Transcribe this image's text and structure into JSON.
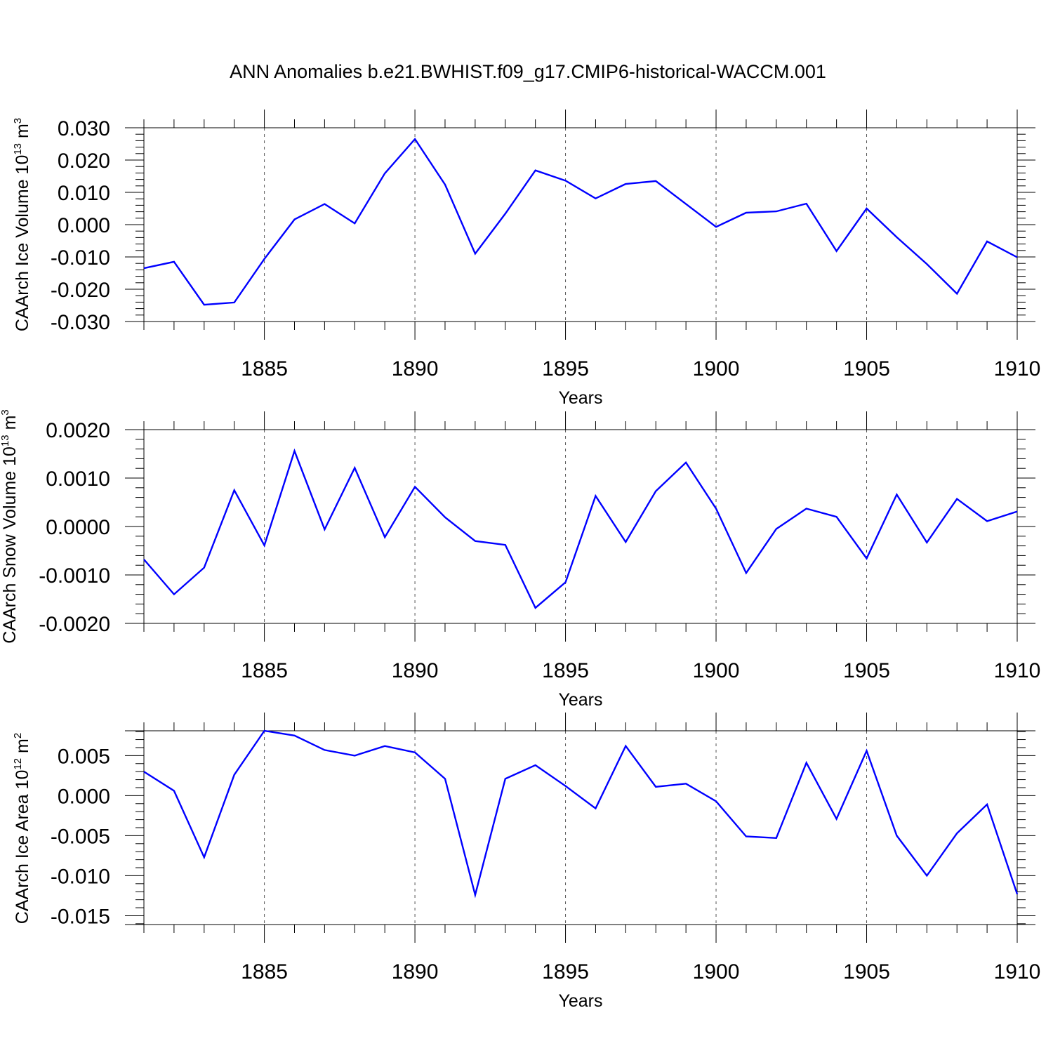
{
  "title": "ANN Anomalies b.e21.BWHIST.f09_g17.CMIP6-historical-WACCM.001",
  "colors": {
    "series": "#0000ff",
    "axes": "#000000",
    "grid": "#555555"
  },
  "chart_data": [
    {
      "type": "line",
      "title": "",
      "xlabel": "Years",
      "ylabel": {
        "text": "CAArch Ice Volume 10",
        "exp": "13",
        "unit": " m",
        "unit_exp": "3"
      },
      "xlim": [
        1881,
        1910
      ],
      "ylim": [
        -0.03,
        0.03
      ],
      "xticks": [
        1885,
        1890,
        1895,
        1900,
        1905,
        1910
      ],
      "yticks": [
        -0.03,
        -0.02,
        -0.01,
        0.0,
        0.01,
        0.02,
        0.03
      ],
      "ytick_labels": [
        "-0.030",
        "-0.020",
        "-0.010",
        "0.000",
        "0.010",
        "0.020",
        "0.030"
      ],
      "yminor_step": 0.002,
      "grid": "vertical dashed at major x ticks",
      "x": [
        1881,
        1882,
        1883,
        1884,
        1885,
        1886,
        1887,
        1888,
        1889,
        1890,
        1891,
        1892,
        1893,
        1894,
        1895,
        1896,
        1897,
        1898,
        1899,
        1900,
        1901,
        1902,
        1903,
        1904,
        1905,
        1906,
        1907,
        1908,
        1909,
        1910
      ],
      "series": [
        {
          "name": "CAArch Ice Volume",
          "values": [
            -0.0135,
            -0.0115,
            -0.0248,
            -0.0241,
            -0.0106,
            0.0016,
            0.0064,
            0.0004,
            0.0159,
            0.0265,
            0.0124,
            -0.009,
            0.0034,
            0.0168,
            0.0136,
            0.0081,
            0.0126,
            0.0135,
            0.0064,
            -0.0007,
            0.0037,
            0.0041,
            0.0065,
            -0.0082,
            0.005,
            -0.0039,
            -0.0122,
            -0.0214,
            -0.0052,
            -0.0101
          ]
        }
      ]
    },
    {
      "type": "line",
      "title": "",
      "xlabel": "Years",
      "ylabel": {
        "text": "CAArch Snow Volume 10",
        "exp": "13",
        "unit": " m",
        "unit_exp": "3"
      },
      "xlim": [
        1881,
        1910
      ],
      "ylim": [
        -0.002,
        0.002
      ],
      "xticks": [
        1885,
        1890,
        1895,
        1900,
        1905,
        1910
      ],
      "yticks": [
        -0.002,
        -0.001,
        0.0,
        0.001,
        0.002
      ],
      "ytick_labels": [
        "-0.0020",
        "-0.0010",
        "0.0000",
        "0.0010",
        "0.0020"
      ],
      "yminor_step": 0.0002,
      "grid": "vertical dashed at major x ticks",
      "x": [
        1881,
        1882,
        1883,
        1884,
        1885,
        1886,
        1887,
        1888,
        1889,
        1890,
        1891,
        1892,
        1893,
        1894,
        1895,
        1896,
        1897,
        1898,
        1899,
        1900,
        1901,
        1902,
        1903,
        1904,
        1905,
        1906,
        1907,
        1908,
        1909,
        1910
      ],
      "series": [
        {
          "name": "CAArch Snow Volume",
          "values": [
            -0.00068,
            -0.0014,
            -0.00085,
            0.00075,
            -0.00039,
            0.00156,
            -6e-05,
            0.00121,
            -0.00022,
            0.00082,
            0.00019,
            -0.0003,
            -0.00038,
            -0.00168,
            -0.00115,
            0.00063,
            -0.00032,
            0.00073,
            0.00132,
            0.00037,
            -0.00096,
            -5e-05,
            0.00037,
            0.0002,
            -0.00066,
            0.00066,
            -0.00033,
            0.00057,
            0.00011,
            0.00031
          ]
        }
      ]
    },
    {
      "type": "line",
      "title": "",
      "xlabel": "Years",
      "ylabel": {
        "text": "CAArch Ice Area 10",
        "exp": "12",
        "unit": " m",
        "unit_exp": "2"
      },
      "xlim": [
        1881,
        1910
      ],
      "ylim": [
        -0.0161,
        0.0081
      ],
      "xticks": [
        1885,
        1890,
        1895,
        1900,
        1905,
        1910
      ],
      "yticks": [
        -0.015,
        -0.01,
        -0.005,
        0.0,
        0.005
      ],
      "ytick_labels": [
        "-0.015",
        "-0.010",
        "-0.005",
        "0.000",
        "0.005"
      ],
      "yminor_step": 0.001,
      "grid": "vertical dashed at major x ticks",
      "x": [
        1881,
        1882,
        1883,
        1884,
        1885,
        1886,
        1887,
        1888,
        1889,
        1890,
        1891,
        1892,
        1893,
        1894,
        1895,
        1896,
        1897,
        1898,
        1899,
        1900,
        1901,
        1902,
        1903,
        1904,
        1905,
        1906,
        1907,
        1908,
        1909,
        1910
      ],
      "series": [
        {
          "name": "CAArch Ice Area",
          "values": [
            0.003,
            0.0006,
            -0.0077,
            0.0026,
            0.0081,
            0.0075,
            0.0057,
            0.005,
            0.0062,
            0.0054,
            0.0021,
            -0.0124,
            0.0021,
            0.0038,
            0.0012,
            -0.0016,
            0.0062,
            0.0011,
            0.0015,
            -0.0007,
            -0.0051,
            -0.0053,
            0.0041,
            -0.0029,
            0.0056,
            -0.005,
            -0.01,
            -0.0047,
            -0.0011,
            -0.0123
          ]
        }
      ]
    }
  ]
}
